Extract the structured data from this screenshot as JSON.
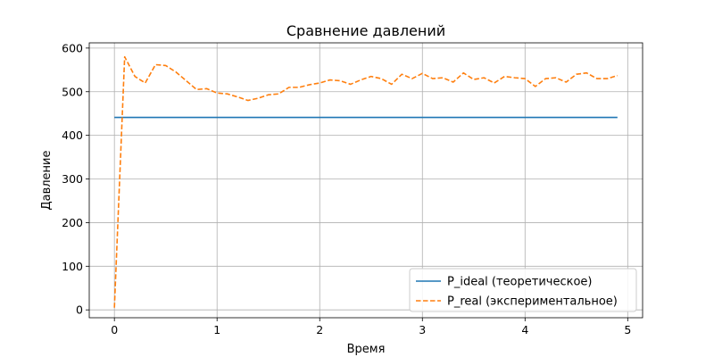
{
  "chart_data": {
    "type": "line",
    "title": "Сравнение давлений",
    "xlabel": "Время",
    "ylabel": "Давление",
    "xlim": [
      -0.245,
      5.145
    ],
    "ylim": [
      -18,
      612
    ],
    "xticks": [
      0,
      1,
      2,
      3,
      4,
      5
    ],
    "yticks": [
      0,
      100,
      200,
      300,
      400,
      500,
      600
    ],
    "grid": true,
    "legend_position": "bottom-right",
    "series": [
      {
        "name": "P_ideal (теоретическое)",
        "color": "#1f77b4",
        "style": "solid",
        "x": [
          0,
          4.9
        ],
        "y": [
          441,
          441
        ]
      },
      {
        "name": "P_real (экспериментальное)",
        "color": "#ff7f0e",
        "style": "dashed",
        "x": [
          0,
          0.1,
          0.2,
          0.3,
          0.4,
          0.5,
          0.6,
          0.7,
          0.8,
          0.9,
          1.0,
          1.1,
          1.2,
          1.3,
          1.4,
          1.5,
          1.6,
          1.7,
          1.8,
          1.9,
          2.0,
          2.1,
          2.2,
          2.3,
          2.4,
          2.5,
          2.6,
          2.7,
          2.8,
          2.9,
          3.0,
          3.1,
          3.2,
          3.3,
          3.4,
          3.5,
          3.6,
          3.7,
          3.8,
          3.9,
          4.0,
          4.1,
          4.2,
          4.3,
          4.4,
          4.5,
          4.6,
          4.7,
          4.8,
          4.9
        ],
        "y": [
          5,
          580,
          535,
          520,
          562,
          560,
          545,
          525,
          505,
          507,
          497,
          495,
          488,
          480,
          485,
          493,
          495,
          510,
          510,
          516,
          520,
          527,
          525,
          517,
          527,
          535,
          530,
          517,
          540,
          530,
          542,
          530,
          532,
          522,
          543,
          528,
          532,
          520,
          535,
          532,
          530,
          512,
          530,
          532,
          522,
          540,
          543,
          530,
          530,
          537
        ]
      }
    ]
  }
}
